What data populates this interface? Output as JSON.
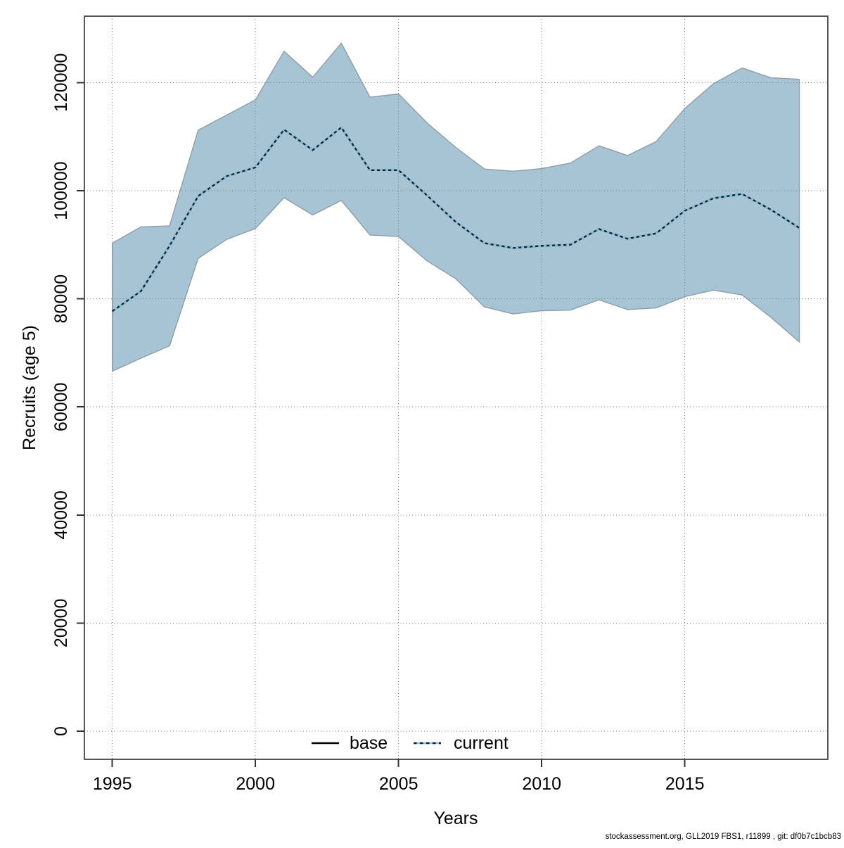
{
  "page": {
    "background": "#ffffff"
  },
  "colors": {
    "band_fill": "#a6c4d4",
    "band_edge": "#8e9ea8",
    "current_line_blue": "#7dc6e8",
    "current_line_dark": "#16232b",
    "base_line": "#000000",
    "grid": "#7a7a7a",
    "frame": "#555555",
    "tick": "#333333",
    "text": "#000000"
  },
  "caption": "stockassessment.org, GLL2019 FBS1, r11899 , git: df0b7c1bcb83",
  "chart_data": {
    "type": "area",
    "title": "",
    "xlabel": "Years",
    "ylabel": "Recruits (age 5)",
    "grid": true,
    "legend_position": "bottom",
    "xlim": [
      1994,
      2020
    ],
    "ylim": [
      -5200,
      132300
    ],
    "x_ticks": [
      1995,
      2000,
      2005,
      2010,
      2015
    ],
    "x_tick_labels": [
      "1995",
      "2000",
      "2005",
      "2010",
      "2015"
    ],
    "y_ticks": [
      0,
      20000,
      40000,
      60000,
      80000,
      100000,
      120000
    ],
    "y_tick_labels": [
      "0",
      "20000",
      "40000",
      "60000",
      "80000",
      "100000",
      "120000"
    ],
    "years": [
      1995,
      1996,
      1997,
      1998,
      1999,
      2000,
      2001,
      2002,
      2003,
      2004,
      2005,
      2006,
      2007,
      2008,
      2009,
      2010,
      2011,
      2012,
      2013,
      2014,
      2015,
      2016,
      2017,
      2018,
      2019
    ],
    "legend": [
      {
        "label": "base",
        "line_style": "solid"
      },
      {
        "label": "current",
        "line_style": "dotted"
      }
    ],
    "series": [
      {
        "name": "base",
        "role": "mean-line-hidden-under-current",
        "y": [
          77700,
          81400,
          89800,
          99000,
          102700,
          104300,
          111300,
          107500,
          111700,
          103800,
          103800,
          99100,
          94200,
          90300,
          89400,
          89800,
          90000,
          92900,
          91100,
          92100,
          96300,
          98600,
          99400,
          96500,
          93100
        ]
      },
      {
        "name": "current",
        "role": "mean-line",
        "y": [
          77700,
          81400,
          89800,
          99000,
          102700,
          104300,
          111300,
          107500,
          111700,
          103800,
          103800,
          99100,
          94200,
          90300,
          89400,
          89800,
          90000,
          92900,
          91100,
          92100,
          96300,
          98600,
          99400,
          96500,
          93100
        ]
      },
      {
        "name": "ci_lower",
        "role": "confidence-band-lower",
        "y": [
          66600,
          69000,
          71300,
          87500,
          91000,
          93000,
          98700,
          95500,
          98200,
          91800,
          91500,
          87000,
          83700,
          78500,
          77200,
          77800,
          77900,
          79800,
          78000,
          78300,
          80400,
          81600,
          80700,
          76600,
          72000
        ]
      },
      {
        "name": "ci_upper",
        "role": "confidence-band-upper",
        "y": [
          90300,
          93300,
          93500,
          111200,
          114000,
          116800,
          125800,
          121000,
          127300,
          117300,
          117900,
          112500,
          108000,
          104000,
          103600,
          104100,
          105100,
          108300,
          106500,
          109100,
          115200,
          119800,
          122700,
          120900,
          120600
        ]
      }
    ]
  }
}
